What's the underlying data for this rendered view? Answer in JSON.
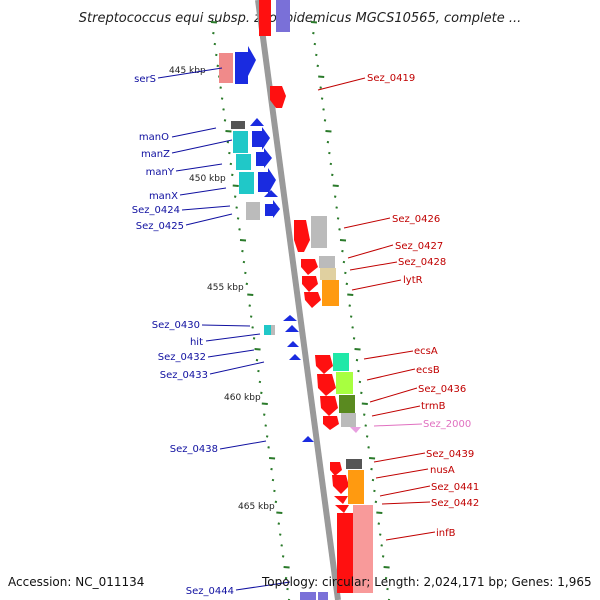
{
  "title": "Streptococcus equi subsp. zooepidemicus MGCS10565, complete ...",
  "footer": {
    "accession": "Accession: NC_011134",
    "topology": "Topology: circular; Length: 2,024,171 bp; Genes: 1,965"
  },
  "colors": {
    "backbone": "#9a9a9a",
    "left_label": "#1010a0",
    "right_label": "#c00000",
    "pseudo_label": "#e070c0",
    "tick": "#2a7a2a"
  },
  "kbp_labels": [
    "445 kbp",
    "450 kbp",
    "455 kbp",
    "460 kbp",
    "465 kbp"
  ],
  "left_genes": [
    "serS",
    "manO",
    "manZ",
    "manY",
    "manX",
    "Sez_0424",
    "Sez_0425",
    "Sez_0430",
    "hit",
    "Sez_0432",
    "Sez_0433",
    "Sez_0438",
    "Sez_0444"
  ],
  "right_genes": [
    "Sez_0419",
    "Sez_0426",
    "Sez_0427",
    "Sez_0428",
    "lytR",
    "ecsA",
    "ecsB",
    "Sez_0436",
    "trmB",
    "Sez_2000",
    "Sez_0439",
    "nusA",
    "Sez_0441",
    "Sez_0442",
    "infB"
  ]
}
